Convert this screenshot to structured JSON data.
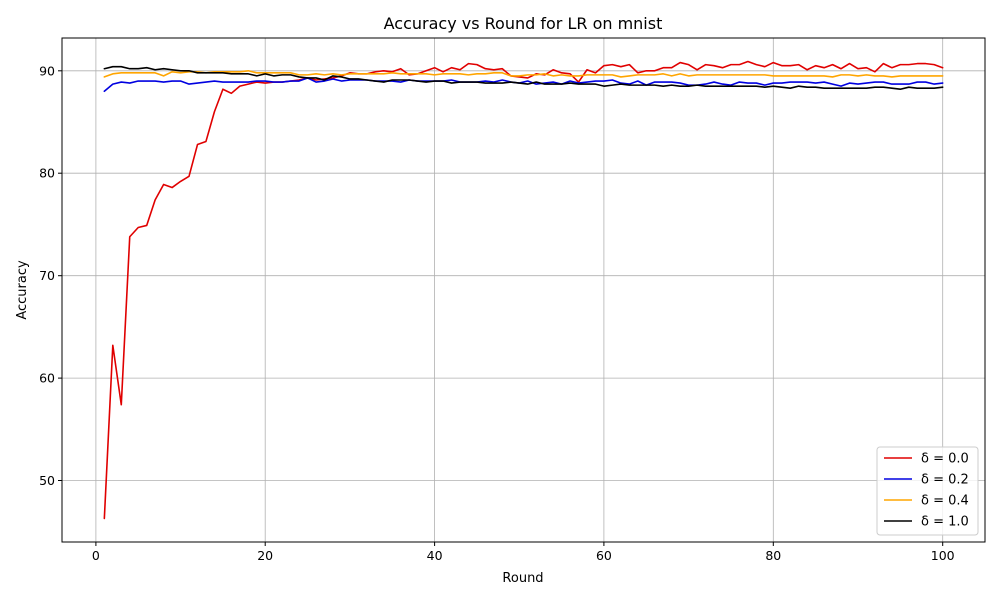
{
  "chart_data": {
    "type": "line",
    "title": "Accuracy vs Round for LR on mnist",
    "xlabel": "Round",
    "ylabel": "Accuracy",
    "xlim": [
      -4,
      105
    ],
    "ylim": [
      44,
      93.2
    ],
    "xticks": [
      0,
      20,
      40,
      60,
      80,
      100
    ],
    "yticks": [
      50,
      60,
      70,
      80,
      90
    ],
    "grid": true,
    "legend_position": "lower-right",
    "x_start": 1,
    "series": [
      {
        "name": "δ = 0.0",
        "color": "#e00000",
        "values": [
          46.3,
          63.2,
          57.4,
          73.8,
          74.7,
          74.9,
          77.4,
          78.9,
          78.6,
          79.2,
          79.7,
          82.8,
          83.1,
          86.0,
          88.2,
          87.8,
          88.5,
          88.7,
          88.9,
          88.8,
          88.9,
          88.9,
          89.0,
          89.1,
          89.3,
          89.1,
          89.2,
          89.3,
          89.5,
          89.8,
          89.7,
          89.7,
          89.9,
          90.0,
          89.9,
          90.2,
          89.6,
          89.7,
          90.0,
          90.3,
          89.9,
          90.3,
          90.1,
          90.7,
          90.6,
          90.2,
          90.1,
          90.2,
          89.5,
          89.4,
          89.3,
          89.7,
          89.6,
          90.1,
          89.8,
          89.7,
          88.9,
          90.1,
          89.8,
          90.5,
          90.6,
          90.4,
          90.6,
          89.8,
          90.0,
          90.0,
          90.3,
          90.3,
          90.8,
          90.6,
          90.1,
          90.6,
          90.5,
          90.3,
          90.6,
          90.6,
          90.9,
          90.6,
          90.4,
          90.8,
          90.5,
          90.5,
          90.6,
          90.1,
          90.5,
          90.3,
          90.6,
          90.2,
          90.7,
          90.2,
          90.3,
          89.9,
          90.7,
          90.3,
          90.6,
          90.6,
          90.7,
          90.7,
          90.6,
          90.3
        ]
      },
      {
        "name": "δ = 0.2",
        "color": "#0000e0",
        "values": [
          88.0,
          88.7,
          88.9,
          88.8,
          89.0,
          89.0,
          89.0,
          88.9,
          89.0,
          89.0,
          88.7,
          88.8,
          88.9,
          89.0,
          88.9,
          88.9,
          88.9,
          88.9,
          89.0,
          89.0,
          88.9,
          88.9,
          89.0,
          89.0,
          89.3,
          88.9,
          89.0,
          89.2,
          89.0,
          89.1,
          89.1,
          89.1,
          89.0,
          89.0,
          89.0,
          88.9,
          89.1,
          89.0,
          89.0,
          89.0,
          89.0,
          89.1,
          88.9,
          88.9,
          88.9,
          89.0,
          88.9,
          89.1,
          88.9,
          88.8,
          89.0,
          88.7,
          88.8,
          88.9,
          88.7,
          89.0,
          88.8,
          88.9,
          89.0,
          89.0,
          89.1,
          88.8,
          88.7,
          89.0,
          88.6,
          88.9,
          88.9,
          88.9,
          88.8,
          88.6,
          88.6,
          88.7,
          88.9,
          88.7,
          88.6,
          88.9,
          88.8,
          88.8,
          88.6,
          88.8,
          88.8,
          88.9,
          88.9,
          88.9,
          88.8,
          88.9,
          88.7,
          88.5,
          88.8,
          88.7,
          88.8,
          88.9,
          88.9,
          88.7,
          88.7,
          88.7,
          88.9,
          88.9,
          88.7,
          88.8
        ]
      },
      {
        "name": "δ = 0.4",
        "color": "#ffa500",
        "values": [
          89.4,
          89.7,
          89.8,
          89.8,
          89.8,
          89.8,
          89.8,
          89.5,
          89.9,
          89.8,
          89.9,
          89.9,
          89.8,
          89.9,
          89.9,
          89.9,
          89.9,
          90.0,
          89.8,
          89.8,
          89.8,
          89.8,
          89.8,
          89.6,
          89.6,
          89.7,
          89.6,
          89.7,
          89.6,
          89.7,
          89.7,
          89.7,
          89.7,
          89.7,
          89.8,
          89.7,
          89.7,
          89.7,
          89.7,
          89.6,
          89.7,
          89.7,
          89.7,
          89.6,
          89.7,
          89.7,
          89.8,
          89.8,
          89.5,
          89.5,
          89.6,
          89.6,
          89.7,
          89.5,
          89.6,
          89.5,
          89.5,
          89.6,
          89.6,
          89.6,
          89.6,
          89.4,
          89.5,
          89.6,
          89.6,
          89.6,
          89.7,
          89.5,
          89.7,
          89.5,
          89.6,
          89.6,
          89.6,
          89.6,
          89.6,
          89.6,
          89.6,
          89.6,
          89.6,
          89.5,
          89.5,
          89.5,
          89.5,
          89.5,
          89.5,
          89.5,
          89.4,
          89.6,
          89.6,
          89.5,
          89.6,
          89.5,
          89.5,
          89.4,
          89.5,
          89.5,
          89.5,
          89.5,
          89.5,
          89.5
        ]
      },
      {
        "name": "δ = 1.0",
        "color": "#000000",
        "values": [
          90.2,
          90.4,
          90.4,
          90.2,
          90.2,
          90.3,
          90.1,
          90.2,
          90.1,
          90.0,
          90.0,
          89.8,
          89.8,
          89.8,
          89.8,
          89.7,
          89.7,
          89.7,
          89.5,
          89.7,
          89.5,
          89.6,
          89.6,
          89.4,
          89.3,
          89.3,
          89.1,
          89.5,
          89.4,
          89.2,
          89.2,
          89.1,
          89.0,
          88.9,
          89.1,
          89.1,
          89.1,
          89.0,
          88.9,
          89.0,
          89.0,
          88.8,
          88.9,
          88.9,
          88.9,
          88.8,
          88.8,
          88.8,
          88.9,
          88.8,
          88.7,
          88.9,
          88.7,
          88.7,
          88.7,
          88.8,
          88.7,
          88.7,
          88.7,
          88.5,
          88.6,
          88.7,
          88.6,
          88.6,
          88.6,
          88.6,
          88.5,
          88.6,
          88.5,
          88.5,
          88.6,
          88.5,
          88.5,
          88.5,
          88.5,
          88.5,
          88.5,
          88.5,
          88.4,
          88.5,
          88.4,
          88.3,
          88.5,
          88.4,
          88.4,
          88.3,
          88.3,
          88.3,
          88.3,
          88.3,
          88.3,
          88.4,
          88.4,
          88.3,
          88.2,
          88.4,
          88.3,
          88.3,
          88.3,
          88.4
        ]
      }
    ]
  }
}
